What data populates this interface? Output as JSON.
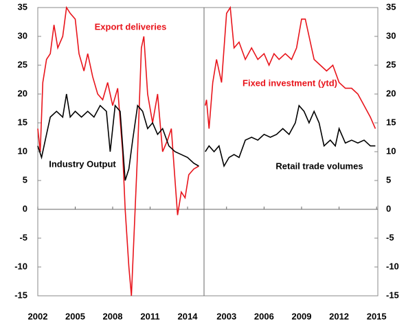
{
  "chart_data": [
    {
      "type": "line",
      "yaxis_side": "left",
      "xlim": [
        2002,
        2015.32
      ],
      "xticks": [
        2002,
        2005,
        2008,
        2011,
        2014
      ],
      "ylim": [
        -15,
        35
      ],
      "yticks": [
        -15,
        -10,
        -5,
        0,
        5,
        10,
        15,
        20,
        25,
        30,
        35
      ],
      "annotations": [
        {
          "text": "Export deliveries",
          "color": "#e8141b"
        },
        {
          "text": "Industry Output",
          "color": "#000000"
        }
      ],
      "series": [
        {
          "name": "Export deliveries",
          "color": "#e8141b",
          "x": [
            2002,
            2002.2,
            2002.4,
            2002.7,
            2003,
            2003.3,
            2003.6,
            2004,
            2004.3,
            2004.6,
            2005,
            2005.3,
            2005.7,
            2006,
            2006.4,
            2006.8,
            2007.2,
            2007.6,
            2008,
            2008.4,
            2008.8,
            2009,
            2009.3,
            2009.5,
            2009.7,
            2010,
            2010.3,
            2010.5,
            2010.8,
            2011.2,
            2011.6,
            2012,
            2012.4,
            2012.7,
            2013,
            2013.2,
            2013.5,
            2013.8,
            2014.1,
            2014.5,
            2014.9
          ],
          "values": [
            14,
            10,
            22,
            26,
            27,
            32,
            28,
            30,
            35,
            34,
            33,
            27,
            24,
            27,
            23,
            20,
            19,
            22,
            18,
            21,
            10,
            0,
            -10,
            -15,
            -5,
            10,
            28,
            30,
            20,
            15,
            20,
            10,
            12,
            14,
            5,
            -1,
            3,
            2,
            6,
            7,
            7.5
          ]
        },
        {
          "name": "Industry Output",
          "color": "#000000",
          "x": [
            2002,
            2002.3,
            2002.7,
            2003,
            2003.5,
            2004,
            2004.3,
            2004.6,
            2005,
            2005.5,
            2006,
            2006.5,
            2007,
            2007.5,
            2007.8,
            2008.2,
            2008.6,
            2009,
            2009.3,
            2009.6,
            2010,
            2010.4,
            2010.8,
            2011.2,
            2011.6,
            2012,
            2012.5,
            2013,
            2013.5,
            2014,
            2014.5,
            2014.9
          ],
          "values": [
            11,
            9,
            13,
            16,
            17,
            16,
            20,
            16,
            17,
            16,
            17,
            16,
            18,
            17,
            10,
            18,
            17,
            5,
            7,
            12,
            18,
            17,
            14,
            15,
            13,
            14,
            11,
            10,
            9.5,
            9,
            8,
            7.5
          ]
        }
      ]
    },
    {
      "type": "line",
      "yaxis_side": "right",
      "xlim": [
        2001.2,
        2015.1
      ],
      "xticks": [
        2003,
        2006,
        2009,
        2012,
        2015
      ],
      "ylim": [
        -15,
        35
      ],
      "yticks": [
        -15,
        -10,
        -5,
        0,
        5,
        10,
        15,
        20,
        25,
        30,
        35
      ],
      "annotations": [
        {
          "text": "Fixed investment (ytd)",
          "color": "#e8141b"
        },
        {
          "text": "Retail trade volumes",
          "color": "#000000"
        }
      ],
      "series": [
        {
          "name": "Fixed investment (ytd)",
          "color": "#e8141b",
          "x": [
            2001.3,
            2001.4,
            2001.6,
            2001.9,
            2002.2,
            2002.6,
            2003,
            2003.3,
            2003.6,
            2004,
            2004.5,
            2005,
            2005.5,
            2006,
            2006.4,
            2006.8,
            2007.2,
            2007.7,
            2008.2,
            2008.6,
            2009,
            2009.3,
            2009.6,
            2010,
            2010.5,
            2011,
            2011.5,
            2012,
            2012.5,
            2013,
            2013.5,
            2014,
            2014.5,
            2014.9
          ],
          "values": [
            18,
            19,
            14,
            22,
            26,
            22,
            34,
            35,
            28,
            29,
            26,
            28,
            26,
            27,
            25,
            27,
            26,
            27,
            26,
            28,
            33,
            33,
            30,
            26,
            25,
            24,
            25,
            22,
            21,
            21,
            20,
            18,
            16,
            14
          ]
        },
        {
          "name": "Retail trade volumes",
          "color": "#000000",
          "x": [
            2001.3,
            2001.6,
            2002,
            2002.4,
            2002.8,
            2003.2,
            2003.6,
            2004,
            2004.5,
            2005,
            2005.5,
            2006,
            2006.5,
            2007,
            2007.5,
            2008,
            2008.5,
            2008.8,
            2009.2,
            2009.6,
            2010,
            2010.4,
            2010.8,
            2011.3,
            2011.7,
            2012,
            2012.5,
            2013,
            2013.5,
            2014,
            2014.5,
            2014.9
          ],
          "values": [
            10,
            11,
            10,
            11,
            7.5,
            9,
            9.5,
            9,
            12,
            12.5,
            12,
            13,
            12.5,
            13,
            14,
            13,
            15,
            18,
            17,
            15,
            17,
            15,
            11,
            12,
            11,
            14,
            11.5,
            12,
            11.5,
            12,
            11,
            11
          ]
        }
      ]
    }
  ]
}
